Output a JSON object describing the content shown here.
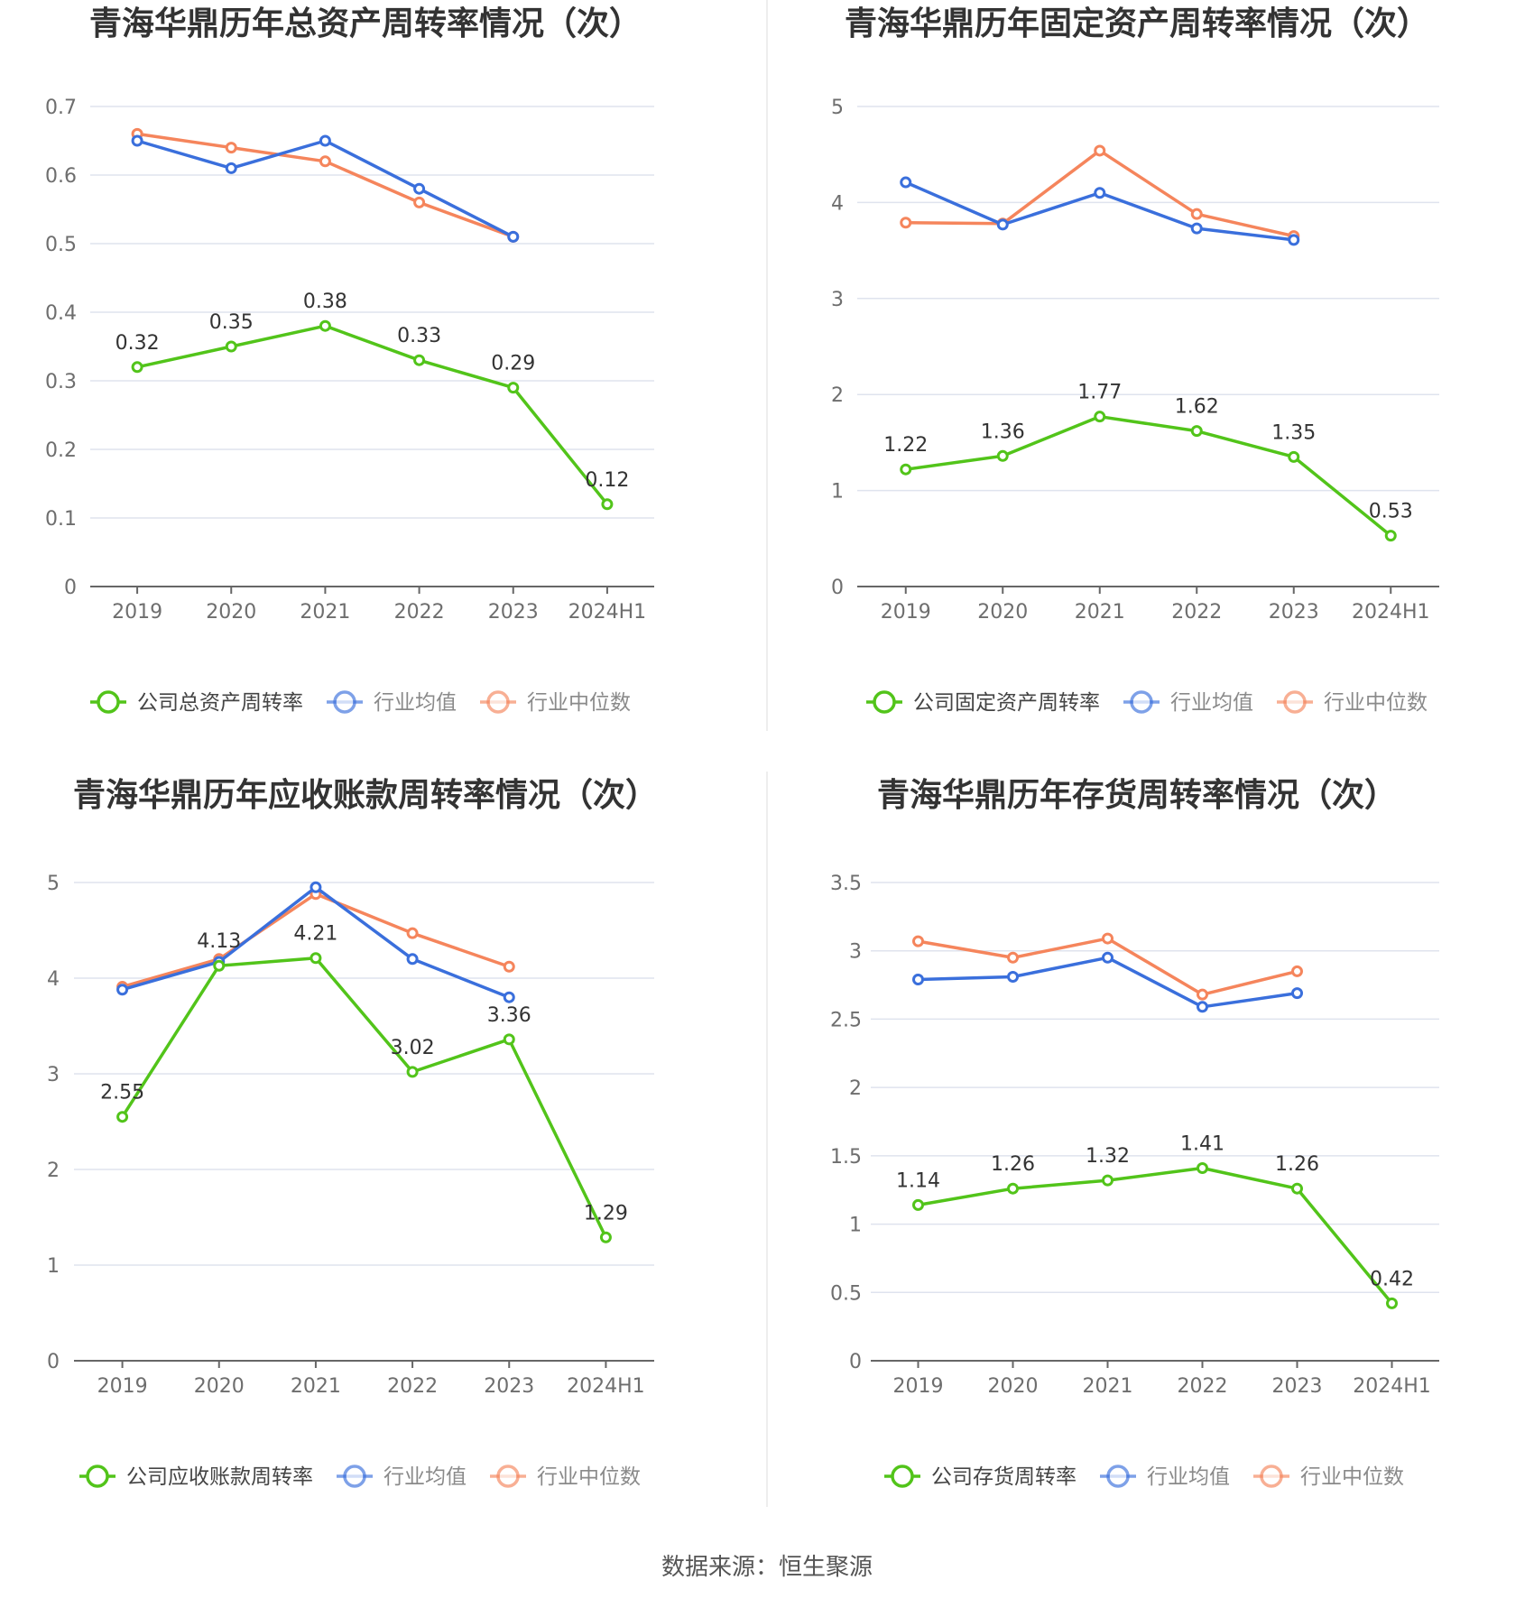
{
  "colors": {
    "company": "#52c41a",
    "average": "#3a6fdc",
    "median": "#f5855c",
    "grid": "#dfe3ee",
    "axis": "#666666"
  },
  "legend_labels": {
    "average": "行业均值",
    "median": "行业中位数"
  },
  "footer": {
    "source": "数据来源：恒生聚源"
  },
  "chart_data": [
    {
      "type": "line",
      "title": "青海华鼎历年总资产周转率情况（次）",
      "categories": [
        "2019",
        "2020",
        "2021",
        "2022",
        "2023",
        "2024H1"
      ],
      "ylim": [
        0,
        0.7
      ],
      "yticks": [
        "0",
        "0.1",
        "0.2",
        "0.3",
        "0.4",
        "0.5",
        "0.6",
        "0.7"
      ],
      "series": [
        {
          "name": "公司总资产周转率",
          "key": "company",
          "values": [
            0.32,
            0.35,
            0.38,
            0.33,
            0.29,
            0.12
          ],
          "labels": [
            "0.32",
            "0.35",
            "0.38",
            "0.33",
            "0.29",
            "0.12"
          ]
        },
        {
          "name": "行业均值",
          "key": "average",
          "values": [
            0.65,
            0.61,
            0.65,
            0.58,
            0.51,
            null
          ]
        },
        {
          "name": "行业中位数",
          "key": "median",
          "values": [
            0.66,
            0.64,
            0.62,
            0.56,
            0.51,
            null
          ]
        }
      ]
    },
    {
      "type": "line",
      "title": "青海华鼎历年固定资产周转率情况（次）",
      "categories": [
        "2019",
        "2020",
        "2021",
        "2022",
        "2023",
        "2024H1"
      ],
      "ylim": [
        0,
        5
      ],
      "yticks": [
        "0",
        "1",
        "2",
        "3",
        "4",
        "5"
      ],
      "series": [
        {
          "name": "公司固定资产周转率",
          "key": "company",
          "values": [
            1.22,
            1.36,
            1.77,
            1.62,
            1.35,
            0.53
          ],
          "labels": [
            "1.22",
            "1.36",
            "1.77",
            "1.62",
            "1.35",
            "0.53"
          ]
        },
        {
          "name": "行业均值",
          "key": "average",
          "values": [
            4.21,
            3.77,
            4.1,
            3.73,
            3.61,
            null
          ]
        },
        {
          "name": "行业中位数",
          "key": "median",
          "values": [
            3.79,
            3.78,
            4.54,
            3.88,
            3.65,
            null
          ]
        }
      ]
    },
    {
      "type": "line",
      "title": "青海华鼎历年应收账款周转率情况（次）",
      "categories": [
        "2019",
        "2020",
        "2021",
        "2022",
        "2023",
        "2024H1"
      ],
      "ylim": [
        0,
        5
      ],
      "yticks": [
        "0",
        "1",
        "2",
        "3",
        "4",
        "5"
      ],
      "series": [
        {
          "name": "公司应收账款周转率",
          "key": "company",
          "values": [
            2.55,
            4.13,
            4.21,
            3.02,
            3.36,
            1.29
          ],
          "labels": [
            "2.55",
            "4.13",
            "4.21",
            "3.02",
            "3.36",
            "1.29"
          ]
        },
        {
          "name": "行业均值",
          "key": "average",
          "values": [
            3.88,
            4.17,
            4.95,
            4.2,
            3.8,
            null
          ]
        },
        {
          "name": "行业中位数",
          "key": "median",
          "values": [
            3.91,
            4.2,
            4.88,
            4.47,
            4.12,
            null
          ]
        }
      ]
    },
    {
      "type": "line",
      "title": "青海华鼎历年存货周转率情况（次）",
      "categories": [
        "2019",
        "2020",
        "2021",
        "2022",
        "2023",
        "2024H1"
      ],
      "ylim": [
        0,
        3.5
      ],
      "yticks": [
        "0",
        "0.5",
        "1",
        "1.5",
        "2",
        "2.5",
        "3",
        "3.5"
      ],
      "series": [
        {
          "name": "公司存货周转率",
          "key": "company",
          "values": [
            1.14,
            1.26,
            1.32,
            1.41,
            1.26,
            0.42
          ],
          "labels": [
            "1.14",
            "1.26",
            "1.32",
            "1.41",
            "1.26",
            "0.42"
          ]
        },
        {
          "name": "行业均值",
          "key": "average",
          "values": [
            2.79,
            2.81,
            2.95,
            2.59,
            2.69,
            null
          ]
        },
        {
          "name": "行业中位数",
          "key": "median",
          "values": [
            3.07,
            2.95,
            3.09,
            2.68,
            2.85,
            null
          ]
        }
      ]
    }
  ]
}
